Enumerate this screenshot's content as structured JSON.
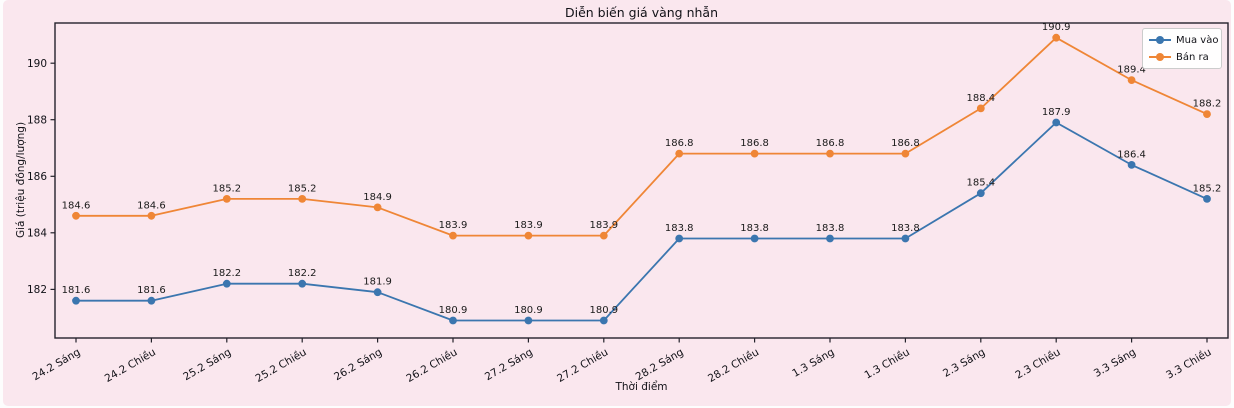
{
  "figure": {
    "background_color": "#fae7ee",
    "spine_color": "#23222b",
    "text_color": "#111117"
  },
  "chart_data": {
    "type": "line",
    "title": "Diễn biến giá vàng nhẫn",
    "xlabel": "Thời điểm",
    "ylabel": "Giá (triệu đồng/lượng)",
    "categories": [
      "24.2 Sáng",
      "24.2 Chiều",
      "25.2 Sáng",
      "25.2 Chiều",
      "26.2 Sáng",
      "26.2 Chiều",
      "27.2 Sáng",
      "27.2 Chiều",
      "28.2 Sáng",
      "28.2 Chiều",
      "1.3 Sáng",
      "1.3 Chiều",
      "2.3 Sáng",
      "2.3 Chiều",
      "3.3 Sáng",
      "3.3 Chiều"
    ],
    "series": [
      {
        "name": "Mua vào",
        "color": "#3b76af",
        "values": [
          181.6,
          181.6,
          182.2,
          182.2,
          181.9,
          180.9,
          180.9,
          180.9,
          183.8,
          183.8,
          183.8,
          183.8,
          185.4,
          187.9,
          186.4,
          185.2
        ]
      },
      {
        "name": "Bán ra",
        "color": "#ef8636",
        "values": [
          184.6,
          184.6,
          185.2,
          185.2,
          184.9,
          183.9,
          183.9,
          183.9,
          186.8,
          186.8,
          186.8,
          186.8,
          188.4,
          190.9,
          189.4,
          188.2
        ]
      }
    ],
    "ylim": [
      180.28,
      191.42
    ],
    "yticks": [
      182,
      184,
      186,
      188,
      190
    ],
    "grid": false,
    "point_labels": true,
    "x_tick_rotation": -30,
    "legend_position": "upper-right"
  }
}
